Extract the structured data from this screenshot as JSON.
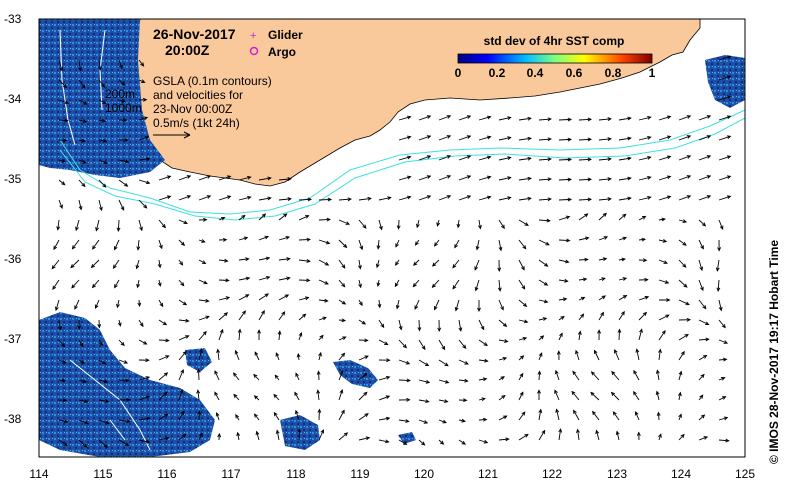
{
  "map": {
    "date": "26-Nov-2017",
    "time": "20:00Z",
    "legend_glider": "Glider",
    "legend_argo": "Argo",
    "gsla_line1": "GSLA (0.1m contours)",
    "gsla_line2": "and velocities for",
    "gsla_line3": "23-Nov 00:00Z",
    "gsla_line4": "0.5m/s (1kt 24h)",
    "depth_200": "200m",
    "depth_1000": "1000m",
    "credit": "© IMOS 28-Nov-2017 19:17 Hobart Time"
  },
  "colorbar": {
    "title": "std dev of 4hr SST comp",
    "ticks": [
      "0",
      "0.2",
      "0.4",
      "0.6",
      "0.8",
      "1"
    ]
  },
  "axes": {
    "x_ticks": [
      "114",
      "115",
      "116",
      "117",
      "118",
      "119",
      "120",
      "121",
      "122",
      "123",
      "124",
      "125"
    ],
    "y_ticks": [
      "-33",
      "-34",
      "-35",
      "-36",
      "-37",
      "-38"
    ]
  },
  "colors": {
    "land": "#f9c99b",
    "sea": "#ffffff",
    "cloud_blue": "#1f4ea8",
    "contour": "#40e0e0",
    "arrow": "#000000"
  }
}
